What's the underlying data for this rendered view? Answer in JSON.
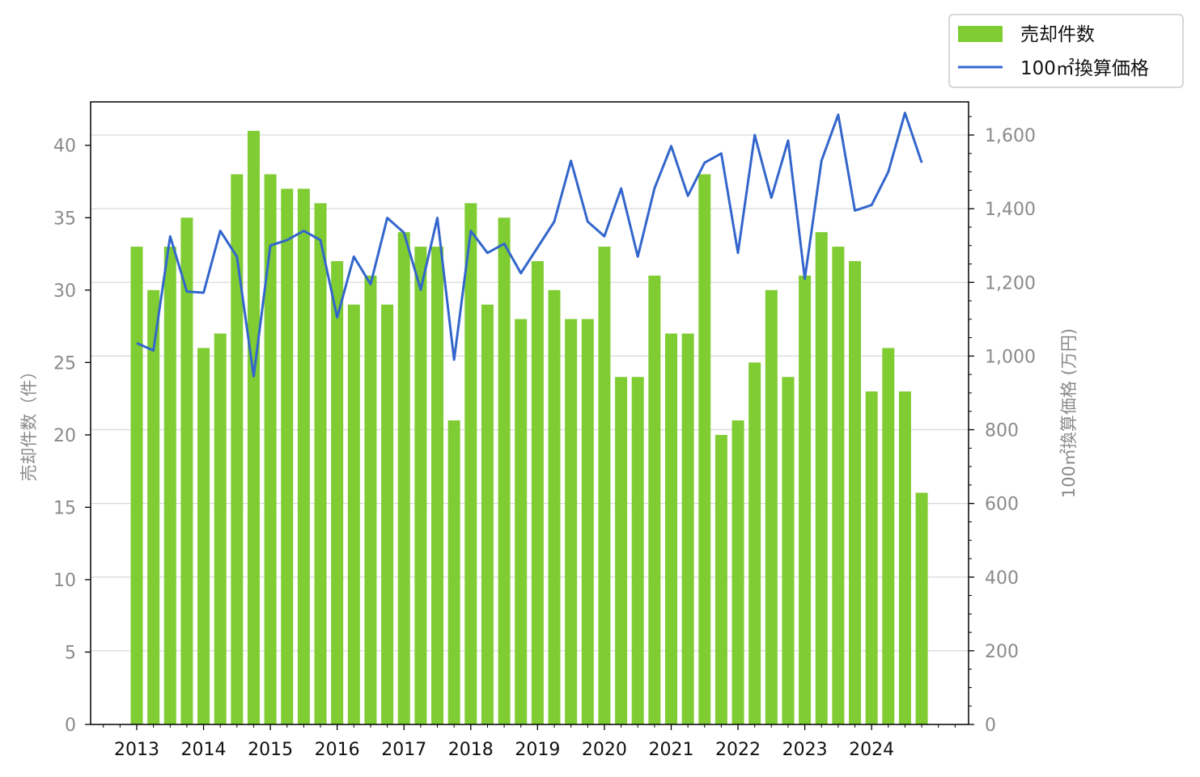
{
  "chart_data": {
    "type": "bar",
    "x": [
      "2013-Q1",
      "2013-Q2",
      "2013-Q3",
      "2013-Q4",
      "2014-Q1",
      "2014-Q2",
      "2014-Q3",
      "2014-Q4",
      "2015-Q1",
      "2015-Q2",
      "2015-Q3",
      "2015-Q4",
      "2016-Q1",
      "2016-Q2",
      "2016-Q3",
      "2016-Q4",
      "2017-Q1",
      "2017-Q2",
      "2017-Q3",
      "2017-Q4",
      "2018-Q1",
      "2018-Q2",
      "2018-Q3",
      "2018-Q4",
      "2019-Q1",
      "2019-Q2",
      "2019-Q3",
      "2019-Q4",
      "2020-Q1",
      "2020-Q2",
      "2020-Q3",
      "2020-Q4",
      "2021-Q1",
      "2021-Q2",
      "2021-Q3",
      "2021-Q4",
      "2022-Q1",
      "2022-Q2",
      "2022-Q3",
      "2022-Q4",
      "2023-Q1",
      "2023-Q2",
      "2023-Q3",
      "2023-Q4",
      "2024-Q1",
      "2024-Q2",
      "2024-Q3",
      "2024-Q4"
    ],
    "x_tick_labels": [
      "2013",
      "2014",
      "2015",
      "2016",
      "2017",
      "2018",
      "2019",
      "2020",
      "2021",
      "2022",
      "2023",
      "2024"
    ],
    "series": [
      {
        "name": "売却件数",
        "kind": "bar",
        "axis": "left",
        "color": "#80cc33",
        "values": [
          33,
          30,
          33,
          35,
          26,
          27,
          38,
          41,
          38,
          37,
          37,
          36,
          32,
          29,
          31,
          29,
          34,
          33,
          33,
          21,
          36,
          29,
          35,
          28,
          32,
          30,
          28,
          28,
          33,
          24,
          24,
          31,
          27,
          27,
          38,
          20,
          21,
          25,
          30,
          24,
          31,
          34,
          33,
          32,
          23,
          26,
          23,
          16
        ]
      },
      {
        "name": "100㎡換算価格",
        "kind": "line",
        "axis": "right",
        "color": "#3366cc",
        "values": [
          1035,
          1015,
          1325,
          1175,
          1172,
          1340,
          1270,
          945,
          1300,
          1315,
          1340,
          1315,
          1105,
          1270,
          1195,
          1375,
          1335,
          1180,
          1375,
          990,
          1340,
          1280,
          1305,
          1225,
          1295,
          1365,
          1530,
          1365,
          1325,
          1455,
          1270,
          1455,
          1570,
          1435,
          1525,
          1550,
          1280,
          1600,
          1430,
          1585,
          1210,
          1530,
          1655,
          1395,
          1410,
          1500,
          1660,
          1525
        ]
      }
    ],
    "left_axis": {
      "label": "売却件数（件）",
      "lim": [
        0,
        43
      ],
      "ticks": [
        "0",
        "5",
        "10",
        "15",
        "20",
        "25",
        "30",
        "35",
        "40"
      ]
    },
    "right_axis": {
      "label": "100㎡換算価格 (万円)",
      "lim": [
        0,
        1690
      ],
      "ticks": [
        "0",
        "200",
        "400",
        "600",
        "800",
        "1,000",
        "1,200",
        "1,400",
        "1,600"
      ]
    },
    "grid": "horizontal",
    "legend": "top-right, outside plot"
  }
}
